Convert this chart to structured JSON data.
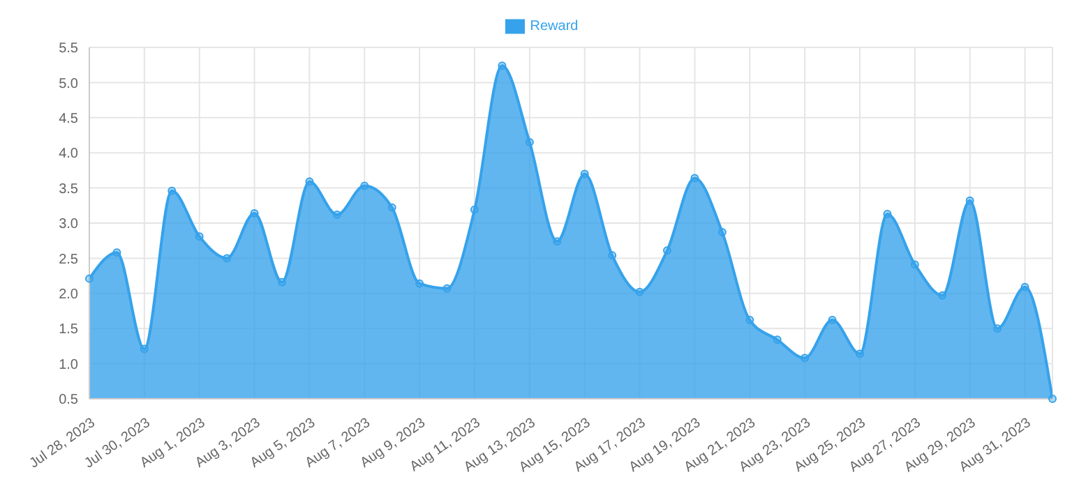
{
  "chart_data": {
    "type": "area",
    "x": [
      "2023-07-28",
      "2023-07-29",
      "2023-07-30",
      "2023-07-31",
      "2023-08-01",
      "2023-08-02",
      "2023-08-03",
      "2023-08-04",
      "2023-08-05",
      "2023-08-06",
      "2023-08-07",
      "2023-08-08",
      "2023-08-09",
      "2023-08-10",
      "2023-08-11",
      "2023-08-12",
      "2023-08-13",
      "2023-08-14",
      "2023-08-15",
      "2023-08-16",
      "2023-08-17",
      "2023-08-18",
      "2023-08-19",
      "2023-08-20",
      "2023-08-21",
      "2023-08-22",
      "2023-08-23",
      "2023-08-24",
      "2023-08-25",
      "2023-08-26",
      "2023-08-27",
      "2023-08-28",
      "2023-08-29",
      "2023-08-30",
      "2023-08-31",
      "2023-09-01"
    ],
    "series": [
      {
        "name": "Reward",
        "color": "#36a2eb",
        "values": [
          2.21,
          2.58,
          1.21,
          3.46,
          2.81,
          2.5,
          3.14,
          2.16,
          3.59,
          3.12,
          3.53,
          3.22,
          2.14,
          2.07,
          3.19,
          5.24,
          4.15,
          2.74,
          3.7,
          2.54,
          2.02,
          2.61,
          3.64,
          2.87,
          1.62,
          1.34,
          1.08,
          1.62,
          1.14,
          3.13,
          2.41,
          1.97,
          3.32,
          1.5,
          2.09,
          0.5
        ]
      }
    ],
    "xlim": [
      "2023-07-28",
      "2023-09-01"
    ],
    "xticks": [
      {
        "value": "2023-07-28",
        "label": "Jul 28, 2023"
      },
      {
        "value": "2023-07-30",
        "label": "Jul 30, 2023"
      },
      {
        "value": "2023-08-01",
        "label": "Aug 1, 2023"
      },
      {
        "value": "2023-08-03",
        "label": "Aug 3, 2023"
      },
      {
        "value": "2023-08-05",
        "label": "Aug 5, 2023"
      },
      {
        "value": "2023-08-07",
        "label": "Aug 7, 2023"
      },
      {
        "value": "2023-08-09",
        "label": "Aug 9, 2023"
      },
      {
        "value": "2023-08-11",
        "label": "Aug 11, 2023"
      },
      {
        "value": "2023-08-13",
        "label": "Aug 13, 2023"
      },
      {
        "value": "2023-08-15",
        "label": "Aug 15, 2023"
      },
      {
        "value": "2023-08-17",
        "label": "Aug 17, 2023"
      },
      {
        "value": "2023-08-19",
        "label": "Aug 19, 2023"
      },
      {
        "value": "2023-08-21",
        "label": "Aug 21, 2023"
      },
      {
        "value": "2023-08-23",
        "label": "Aug 23, 2023"
      },
      {
        "value": "2023-08-25",
        "label": "Aug 25, 2023"
      },
      {
        "value": "2023-08-27",
        "label": "Aug 27, 2023"
      },
      {
        "value": "2023-08-29",
        "label": "Aug 29, 2023"
      },
      {
        "value": "2023-08-31",
        "label": "Aug 31, 2023"
      }
    ],
    "ylim": [
      0.5,
      5.5
    ],
    "yticks": [
      0.5,
      {
        "value": 1,
        "label": "1.0"
      },
      1.5,
      {
        "value": 2,
        "label": "2.0"
      },
      2.5,
      {
        "value": 3,
        "label": "3.0"
      },
      3.5,
      {
        "value": 4,
        "label": "4.0"
      },
      4.5,
      {
        "value": 5,
        "label": "5.0"
      },
      5.5
    ],
    "grid": true,
    "legend": "top",
    "marker": "circle",
    "line_style": "solid"
  }
}
